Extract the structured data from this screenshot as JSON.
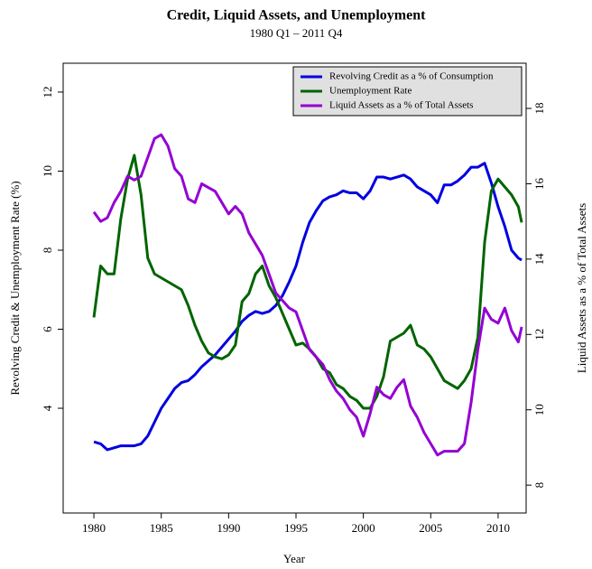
{
  "chart_data": {
    "type": "line",
    "title": "Credit, Liquid Assets, and Unemployment",
    "subtitle": "1980 Q1 – 2011 Q4",
    "xlabel": "Year",
    "ylabel": "Revolving Credit & Unemployment Rate (%)",
    "y2label": "Liquid Assets as a % of Total Assets",
    "x": [
      1980,
      1980.5,
      1981,
      1981.5,
      1982,
      1982.5,
      1983,
      1983.5,
      1984,
      1984.5,
      1985,
      1985.5,
      1986,
      1986.5,
      1987,
      1987.5,
      1988,
      1988.5,
      1989,
      1989.5,
      1990,
      1990.5,
      1991,
      1991.5,
      1992,
      1992.5,
      1993,
      1993.5,
      1994,
      1994.5,
      1995,
      1995.5,
      1996,
      1996.5,
      1997,
      1997.5,
      1998,
      1998.5,
      1999,
      1999.5,
      2000,
      2000.5,
      2001,
      2001.5,
      2002,
      2002.5,
      2003,
      2003.5,
      2004,
      2004.5,
      2005,
      2005.5,
      2006,
      2006.5,
      2007,
      2007.5,
      2008,
      2008.5,
      2009,
      2009.5,
      2010,
      2010.5,
      2011,
      2011.5,
      2011.75
    ],
    "series": [
      {
        "name": "Revolving Credit as a % of Consumption",
        "color": "#0000e0",
        "axis": "y",
        "values": [
          3.15,
          3.1,
          2.95,
          3.0,
          3.05,
          3.05,
          3.05,
          3.1,
          3.3,
          3.65,
          4.0,
          4.25,
          4.5,
          4.65,
          4.7,
          4.85,
          5.05,
          5.2,
          5.35,
          5.55,
          5.75,
          5.95,
          6.2,
          6.35,
          6.45,
          6.4,
          6.45,
          6.6,
          6.85,
          7.2,
          7.6,
          8.2,
          8.7,
          9.0,
          9.25,
          9.35,
          9.4,
          9.5,
          9.45,
          9.45,
          9.3,
          9.5,
          9.85,
          9.85,
          9.8,
          9.85,
          9.9,
          9.8,
          9.6,
          9.5,
          9.4,
          9.2,
          9.65,
          9.65,
          9.75,
          9.9,
          10.1,
          10.1,
          10.2,
          9.7,
          9.1,
          8.6,
          8.0,
          7.8,
          7.75
        ]
      },
      {
        "name": "Unemployment Rate",
        "color": "#006400",
        "axis": "y",
        "values": [
          6.3,
          7.6,
          7.4,
          7.4,
          8.8,
          9.8,
          10.4,
          9.4,
          7.8,
          7.4,
          7.3,
          7.2,
          7.1,
          7.0,
          6.6,
          6.1,
          5.7,
          5.4,
          5.3,
          5.25,
          5.35,
          5.6,
          6.7,
          6.9,
          7.4,
          7.6,
          7.1,
          6.8,
          6.4,
          6.0,
          5.6,
          5.65,
          5.5,
          5.3,
          5.0,
          4.9,
          4.6,
          4.5,
          4.3,
          4.2,
          4.0,
          4.0,
          4.3,
          4.8,
          5.7,
          5.8,
          5.9,
          6.1,
          5.6,
          5.5,
          5.3,
          5.0,
          4.7,
          4.6,
          4.5,
          4.7,
          5.0,
          5.8,
          8.2,
          9.5,
          9.8,
          9.6,
          9.4,
          9.1,
          8.7
        ]
      },
      {
        "name": "Liquid Assets as a % of Total Assets",
        "color": "#9400d3",
        "axis": "y2",
        "values": [
          15.25,
          15.0,
          15.1,
          15.5,
          15.8,
          16.2,
          16.1,
          16.2,
          16.7,
          17.2,
          17.3,
          17.0,
          16.4,
          16.2,
          15.6,
          15.5,
          16.0,
          15.9,
          15.8,
          15.5,
          15.2,
          15.4,
          15.2,
          14.7,
          14.4,
          14.1,
          13.6,
          13.1,
          12.9,
          12.7,
          12.6,
          12.1,
          11.6,
          11.4,
          11.2,
          10.8,
          10.5,
          10.3,
          10.0,
          9.8,
          9.3,
          9.9,
          10.6,
          10.4,
          10.3,
          10.6,
          10.8,
          10.1,
          9.8,
          9.4,
          9.1,
          8.8,
          8.9,
          8.9,
          8.9,
          9.1,
          10.2,
          11.6,
          12.7,
          12.4,
          12.3,
          12.7,
          12.1,
          11.8,
          12.2
        ]
      }
    ],
    "xlim": [
      1977.72,
      2012.08
    ],
    "xticks": [
      1980,
      1985,
      1990,
      1995,
      2000,
      2005,
      2010
    ],
    "ylim": [
      1.35,
      12.73
    ],
    "yticks": [
      4,
      6,
      8,
      10,
      12
    ],
    "y2lim": [
      7.26,
      19.2
    ],
    "y2ticks": [
      8,
      10,
      12,
      14,
      16,
      18
    ],
    "legend": "top-right"
  }
}
